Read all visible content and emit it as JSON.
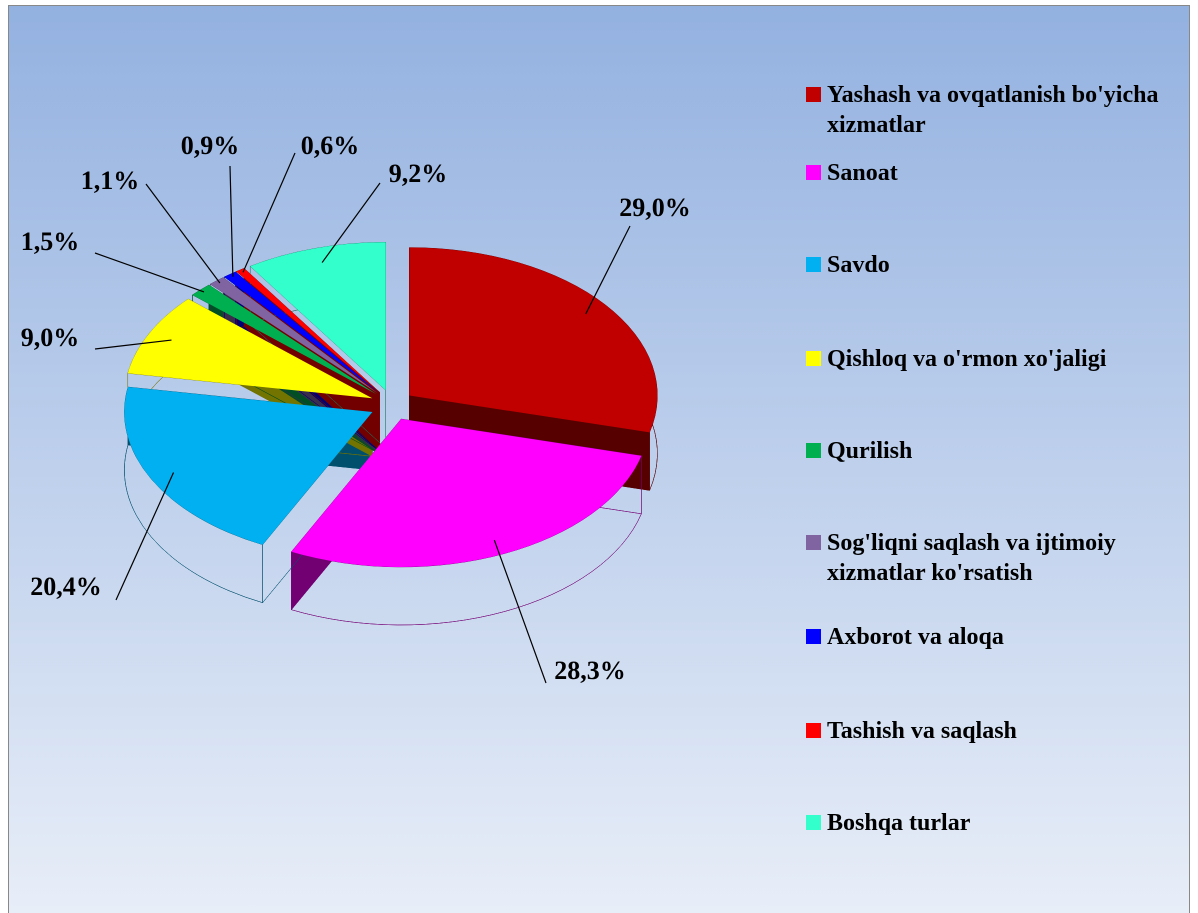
{
  "chart_data": {
    "type": "pie",
    "categories": [
      "Yashash va ovqatlanish bo'yicha xizmatlar",
      "Sanoat",
      "Savdo",
      "Qishloq va o'rmon xo'jaligi",
      "Qurilish",
      "Sog'liqni saqlash va ijtimoiy xizmatlar ko'rsatish",
      "Axborot va aloqa",
      "Tashish va saqlash",
      "Boshqa turlar"
    ],
    "values": [
      29.0,
      28.3,
      20.4,
      9.0,
      1.5,
      1.1,
      0.9,
      0.6,
      9.2
    ],
    "value_labels": [
      "29,0%",
      "28,3%",
      "20,4%",
      "9,0%",
      "1,5%",
      "1,1%",
      "0,9%",
      "0,6%",
      "9,2%"
    ],
    "colors": [
      "#c00000",
      "#ff00ff",
      "#00b0f0",
      "#ffff00",
      "#00b050",
      "#8064a2",
      "#0000ff",
      "#ff0000",
      "#33ffcc"
    ],
    "legend": "right"
  }
}
